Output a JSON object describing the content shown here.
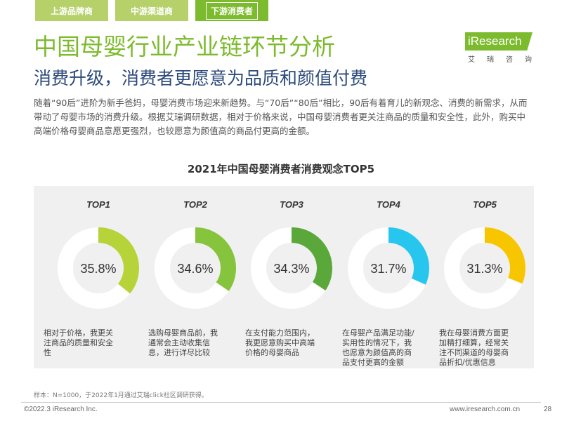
{
  "tabs": [
    "上游品牌商",
    "中游渠道商",
    "下游消费者"
  ],
  "active_tab": 2,
  "logo": {
    "word": "iResearch",
    "sub": "艾瑞咨询"
  },
  "title": "中国母婴行业产业链环节分析",
  "subtitle": "消费升级，消费者更愿意为品质和颜值付费",
  "body": "随着“90后”进阶为新手爸妈，母婴消费市场迎来新趋势。与“70后”“80后”相比，90后有着育儿的新观念、消费的新需求，从而带动了母婴市场的消费升级。根据艾瑞调研数据，相对于价格来说，中国母婴消费者更关注商品的质量和安全性，此外，购买中高端价格母婴商品意愿更强烈，也较愿意为颜值高的商品付更高的金额。",
  "chart_data": {
    "type": "pie",
    "title": "2021年中国母婴消费者消费观念TOP5",
    "categories": [
      "TOP1",
      "TOP2",
      "TOP3",
      "TOP4",
      "TOP5"
    ],
    "values": [
      35.8,
      34.6,
      34.3,
      31.7,
      31.3
    ],
    "value_labels": [
      "35.8%",
      "34.6%",
      "34.3%",
      "31.7%",
      "31.3%"
    ],
    "colors": [
      "#b6d33a",
      "#86c43e",
      "#5aa83a",
      "#27c6ee",
      "#f7c600"
    ],
    "track_color": "#ffffff",
    "descriptions": [
      "相对于价格，我更关注商品的质量和安全性",
      "选购母婴商品前，我通常会主动收集信息，进行详尽比较",
      "在支付能力范围内，我更愿意购买中高端价格的母婴商品",
      "在母婴产品满足功能/实用性的情况下，我也愿意为颜值高的商品支付更高的金额",
      "我在母婴消费方面更加精打细算，经常关注不同渠道的母婴商品折扣/优惠信息"
    ]
  },
  "source": "样本：N=1000，于2022年1月通过艾瑞click社区调研获得。",
  "footer": {
    "copyright": "©2022.3 iResearch Inc.",
    "website": "www.iresearch.com.cn",
    "page": "28"
  }
}
